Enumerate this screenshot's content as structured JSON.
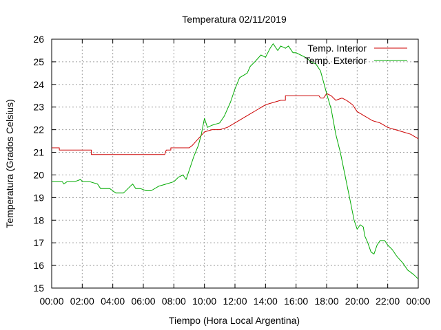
{
  "chart_data": {
    "type": "line",
    "title": "Temperatura 02/11/2019",
    "xlabel": "Tiempo (Hora Local Argentina)",
    "ylabel": "Temperatura (Grados Celsius)",
    "xlim": [
      0,
      24
    ],
    "ylim": [
      15,
      26
    ],
    "grid": true,
    "legend_position": "top-right",
    "x_ticks": [
      0,
      2,
      4,
      6,
      8,
      10,
      12,
      14,
      16,
      18,
      20,
      22,
      24
    ],
    "x_tick_labels": [
      "00:00",
      "02:00",
      "04:00",
      "06:00",
      "08:00",
      "10:00",
      "12:00",
      "14:00",
      "16:00",
      "18:00",
      "20:00",
      "22:00",
      "00:00"
    ],
    "y_ticks": [
      15,
      16,
      17,
      18,
      19,
      20,
      21,
      22,
      23,
      24,
      25,
      26
    ],
    "y_tick_labels": [
      "15",
      "16",
      "17",
      "18",
      "19",
      "20",
      "21",
      "22",
      "23",
      "24",
      "25",
      "26"
    ],
    "series": [
      {
        "name": "Temp. Interior",
        "color": "#cc0000",
        "x": [
          0,
          0.5,
          0.5,
          2.6,
          2.6,
          7.4,
          7.5,
          7.8,
          7.8,
          9.0,
          9.2,
          9.6,
          10.0,
          10.5,
          11.0,
          11.5,
          12.0,
          12.5,
          13.0,
          13.5,
          14.0,
          14.5,
          15.0,
          15.3,
          15.3,
          17.5,
          17.6,
          17.8,
          18.0,
          18.3,
          18.6,
          19.0,
          19.3,
          19.7,
          20.0,
          20.5,
          21.0,
          21.5,
          22.0,
          22.5,
          23.0,
          23.5,
          24.0
        ],
        "y": [
          21.2,
          21.2,
          21.1,
          21.1,
          20.9,
          20.9,
          21.1,
          21.1,
          21.2,
          21.2,
          21.3,
          21.6,
          21.9,
          22.0,
          22.0,
          22.1,
          22.3,
          22.5,
          22.7,
          22.9,
          23.1,
          23.2,
          23.3,
          23.3,
          23.5,
          23.5,
          23.4,
          23.4,
          23.6,
          23.5,
          23.3,
          23.4,
          23.3,
          23.1,
          22.8,
          22.6,
          22.4,
          22.3,
          22.1,
          22.0,
          21.9,
          21.8,
          21.6
        ]
      },
      {
        "name": "Temp. Exterior",
        "color": "#00aa00",
        "x": [
          0,
          0.7,
          0.8,
          1.0,
          1.5,
          1.9,
          2.0,
          2.5,
          3.0,
          3.2,
          3.8,
          4.0,
          4.2,
          4.7,
          5.0,
          5.3,
          5.5,
          5.8,
          6.2,
          6.5,
          7.0,
          7.5,
          8.0,
          8.3,
          8.6,
          8.8,
          9.0,
          9.3,
          9.6,
          9.8,
          10.0,
          10.2,
          10.5,
          11.0,
          11.3,
          11.7,
          12.0,
          12.3,
          12.8,
          13.0,
          13.3,
          13.7,
          14.0,
          14.3,
          14.5,
          14.8,
          15.0,
          15.3,
          15.5,
          15.8,
          16.0,
          16.3,
          16.6,
          17.0,
          17.3,
          17.6,
          17.8,
          18.0,
          18.3,
          18.6,
          18.9,
          19.2,
          19.5,
          19.8,
          20.0,
          20.2,
          20.4,
          20.5,
          20.7,
          20.9,
          21.1,
          21.3,
          21.5,
          21.8,
          22.0,
          22.3,
          22.6,
          23.0,
          23.3,
          23.7,
          24.0
        ],
        "y": [
          19.7,
          19.7,
          19.6,
          19.7,
          19.7,
          19.8,
          19.7,
          19.7,
          19.6,
          19.4,
          19.4,
          19.3,
          19.2,
          19.2,
          19.4,
          19.6,
          19.4,
          19.4,
          19.3,
          19.3,
          19.5,
          19.6,
          19.7,
          19.9,
          20.0,
          19.8,
          20.2,
          20.8,
          21.3,
          21.8,
          22.5,
          22.1,
          22.2,
          22.3,
          22.6,
          23.2,
          23.8,
          24.3,
          24.5,
          24.8,
          25.0,
          25.3,
          25.2,
          25.6,
          25.8,
          25.5,
          25.7,
          25.6,
          25.7,
          25.4,
          25.4,
          25.3,
          25.2,
          25.0,
          24.9,
          24.6,
          24.1,
          23.6,
          22.9,
          21.8,
          21.0,
          20.0,
          19.0,
          18.0,
          17.6,
          17.8,
          17.7,
          17.3,
          17.0,
          16.6,
          16.5,
          16.9,
          17.1,
          17.1,
          16.9,
          16.7,
          16.4,
          16.1,
          15.8,
          15.6,
          15.4
        ]
      }
    ]
  }
}
